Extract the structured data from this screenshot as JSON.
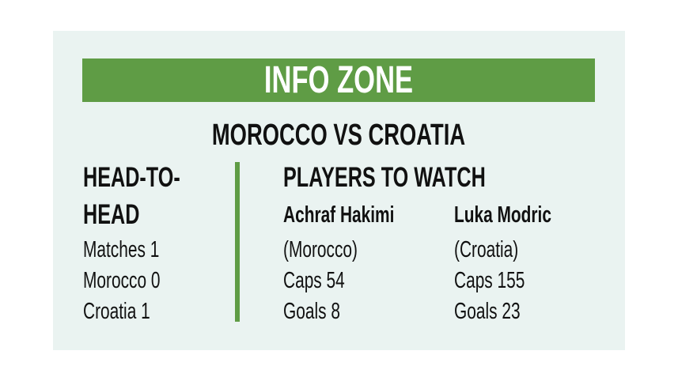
{
  "header": {
    "title": "INFO ZONE",
    "subtitle": "MOROCCO VS CROATIA"
  },
  "head_to_head": {
    "title_line1": "HEAD-TO-",
    "title_line2": "HEAD",
    "lines": [
      "Matches 1",
      "Morocco 0",
      "Croatia 1"
    ]
  },
  "players": {
    "title": "PLAYERS TO WATCH",
    "list": [
      {
        "name": "Achraf Hakimi",
        "country": "(Morocco)",
        "caps": "Caps 54",
        "goals": "Goals 8"
      },
      {
        "name": "Luka Modric",
        "country": "(Croatia)",
        "caps": "Caps 155",
        "goals": "Goals 23"
      }
    ]
  },
  "colors": {
    "accent": "#5f9c45",
    "background": "#eaf3f1"
  }
}
